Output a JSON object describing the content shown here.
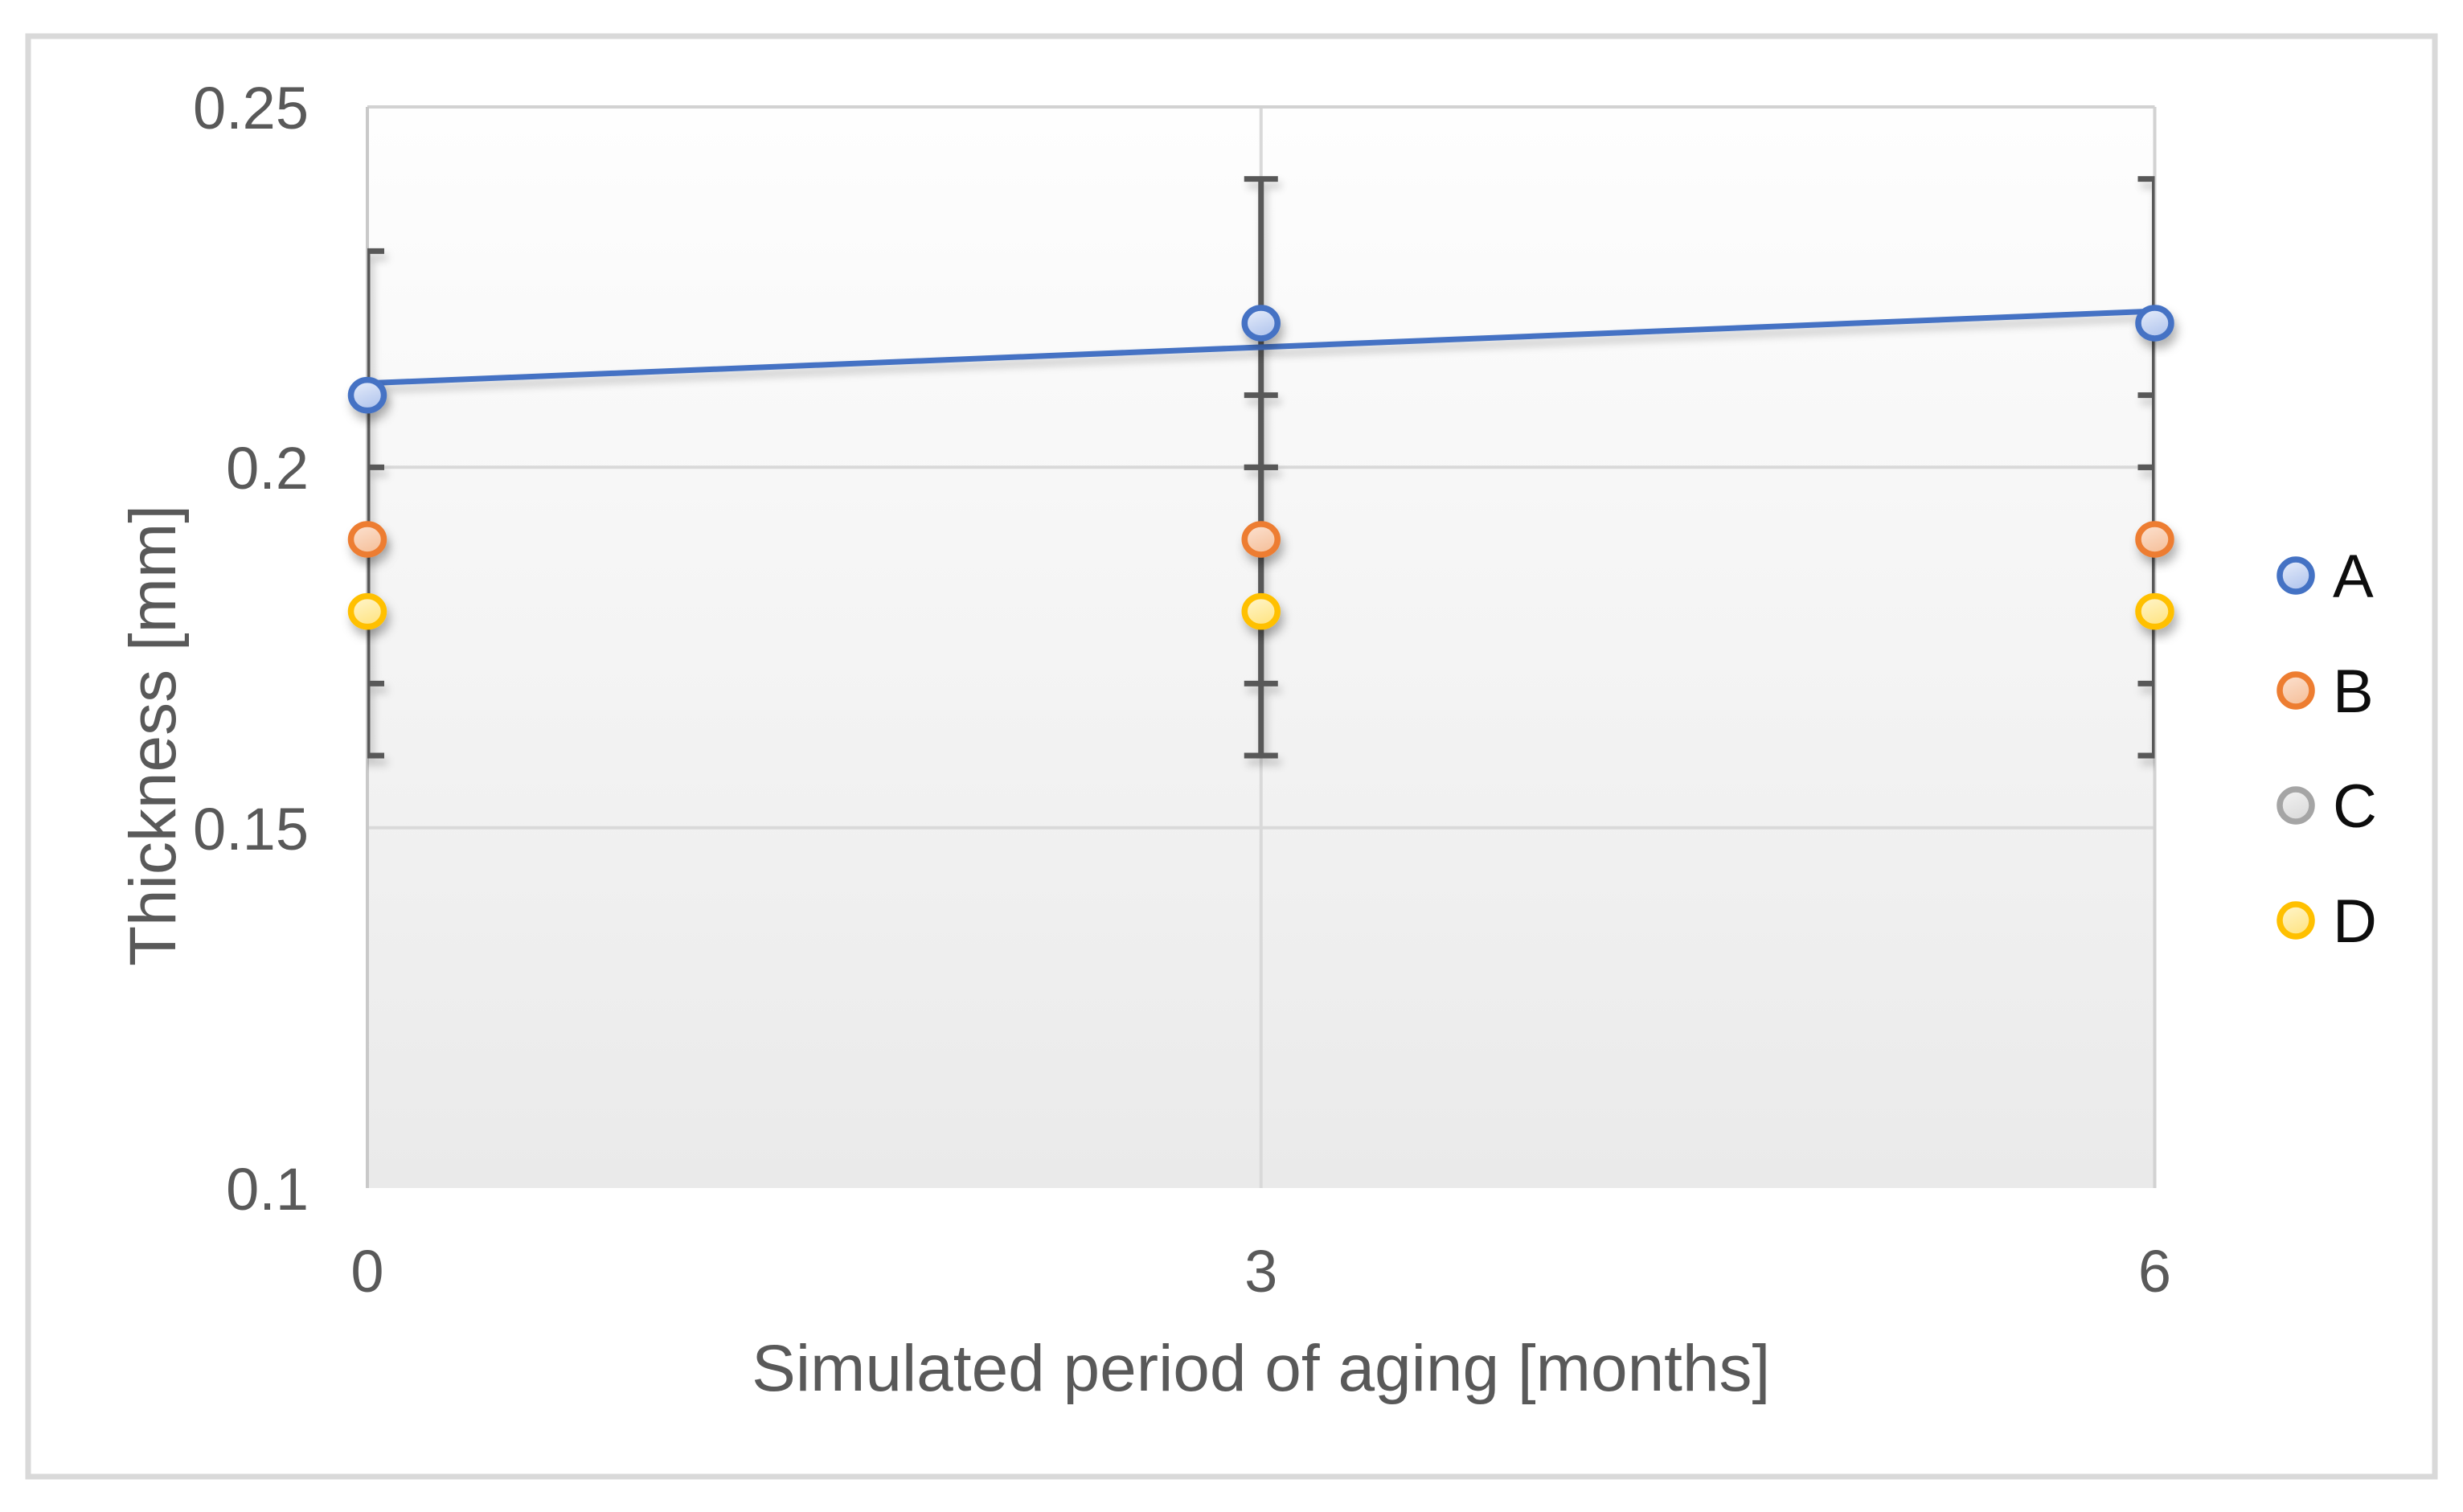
{
  "chart_data": {
    "type": "scatter",
    "title": "",
    "xlabel": "Simulated period of aging [months]",
    "ylabel": "Thickness [mm]",
    "x": [
      0,
      3,
      6
    ],
    "x_tick_labels": [
      "0",
      "3",
      "6"
    ],
    "y_tick_labels": [
      "0.25",
      "0.2",
      "0.15",
      "0.1"
    ],
    "xlim": [
      0,
      6
    ],
    "ylim": [
      0.1,
      0.25
    ],
    "y_major_unit": 0.05,
    "error_bar_plus_minus": 0.02,
    "grid": true,
    "legend_position": "right",
    "trendline": "linear",
    "series": [
      {
        "name": "A",
        "values": [
          0.21,
          0.22,
          0.22
        ],
        "color": "#4472C4",
        "fill": [
          "#e9effb",
          "#b4c7ee"
        ],
        "hidden_in_plot": false
      },
      {
        "name": "B",
        "values": [
          0.19,
          0.19,
          0.19
        ],
        "color": "#ED7D31",
        "fill": [
          "#fce3d3",
          "#f6c29e"
        ],
        "hidden_in_plot": false
      },
      {
        "name": "C",
        "values": [
          0.18,
          0.18,
          0.18
        ],
        "color": "#A5A5A5",
        "fill": [
          "#f3f3f3",
          "#dcdcdc"
        ],
        "hidden_in_plot": true,
        "note": "markers not visible in plot, hidden behind series D"
      },
      {
        "name": "D",
        "values": [
          0.18,
          0.18,
          0.18
        ],
        "color": "#FFC000",
        "fill": [
          "#fff6d0",
          "#ffe587"
        ],
        "hidden_in_plot": false
      }
    ],
    "style": {
      "error_bar_color": "#595959",
      "gridline_color": "#d9d9d9",
      "plot_border_color": "#d2d2d2",
      "axis_line_color": "#bfbfbf",
      "outer_border_color": "#d9d9d9",
      "plot_bg_top": "#fefefe",
      "plot_bg_bottom": "#eaeaea",
      "label_color": "#595959",
      "legend_text_color": "#0d0d0d"
    }
  }
}
